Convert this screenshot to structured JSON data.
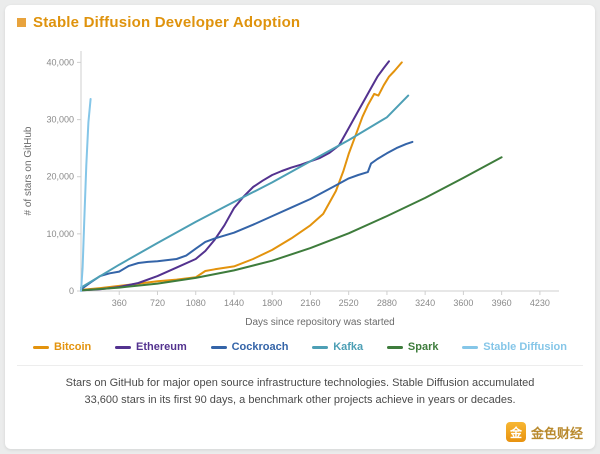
{
  "header": {
    "title": "Stable Diffusion Developer Adoption"
  },
  "colors": {
    "title_accent": "#DF930D",
    "axis_line": "#cfcfcf",
    "tick_text": "#8a8a8a",
    "axis_title_text": "#6b6b6b"
  },
  "chart_data": {
    "type": "line",
    "title": "Stable Diffusion Developer Adoption",
    "xlabel": "Days since repository was started",
    "ylabel": "# of stars on GitHub",
    "x_range": [
      0,
      4500
    ],
    "y_range": [
      0,
      42000
    ],
    "grid": false,
    "legend_position": "bottom",
    "x_tick_step": 360,
    "x_tick_labels": [
      "360",
      "720",
      "1080",
      "1440",
      "1800",
      "2160",
      "2520",
      "2880",
      "3240",
      "3600",
      "3960",
      "4230"
    ],
    "y_tick_values": [
      0,
      10000,
      20000,
      30000,
      40000
    ],
    "y_tick_labels": [
      "0",
      "10,000",
      "20,000",
      "30,000",
      "40,000"
    ],
    "series": [
      {
        "name": "Bitcoin",
        "color": "#E3930D",
        "points": [
          [
            0,
            200
          ],
          [
            180,
            500
          ],
          [
            360,
            900
          ],
          [
            540,
            1300
          ],
          [
            720,
            1700
          ],
          [
            900,
            2000
          ],
          [
            1080,
            2400
          ],
          [
            1170,
            3500
          ],
          [
            1260,
            3800
          ],
          [
            1440,
            4300
          ],
          [
            1620,
            5600
          ],
          [
            1800,
            7200
          ],
          [
            1980,
            9200
          ],
          [
            2160,
            11500
          ],
          [
            2280,
            13500
          ],
          [
            2400,
            17500
          ],
          [
            2470,
            21000
          ],
          [
            2520,
            24000
          ],
          [
            2580,
            27000
          ],
          [
            2650,
            30500
          ],
          [
            2700,
            32500
          ],
          [
            2760,
            34500
          ],
          [
            2800,
            34200
          ],
          [
            2850,
            36000
          ],
          [
            2900,
            37500
          ],
          [
            2950,
            38500
          ],
          [
            3020,
            40000
          ]
        ]
      },
      {
        "name": "Ethereum",
        "color": "#53328F",
        "points": [
          [
            0,
            100
          ],
          [
            180,
            300
          ],
          [
            360,
            700
          ],
          [
            540,
            1400
          ],
          [
            720,
            2600
          ],
          [
            900,
            4100
          ],
          [
            1080,
            5600
          ],
          [
            1170,
            7000
          ],
          [
            1260,
            9000
          ],
          [
            1350,
            11500
          ],
          [
            1440,
            14500
          ],
          [
            1530,
            16500
          ],
          [
            1620,
            18200
          ],
          [
            1710,
            19300
          ],
          [
            1800,
            20300
          ],
          [
            1890,
            21000
          ],
          [
            1980,
            21600
          ],
          [
            2070,
            22100
          ],
          [
            2160,
            22700
          ],
          [
            2250,
            23300
          ],
          [
            2340,
            24200
          ],
          [
            2430,
            25500
          ],
          [
            2490,
            27500
          ],
          [
            2550,
            29500
          ],
          [
            2610,
            31500
          ],
          [
            2670,
            33500
          ],
          [
            2730,
            35500
          ],
          [
            2790,
            37500
          ],
          [
            2850,
            39000
          ],
          [
            2900,
            40200
          ]
        ]
      },
      {
        "name": "Cockroach",
        "color": "#3464A8",
        "points": [
          [
            0,
            300
          ],
          [
            90,
            1500
          ],
          [
            180,
            2600
          ],
          [
            270,
            3100
          ],
          [
            360,
            3400
          ],
          [
            450,
            4400
          ],
          [
            540,
            4900
          ],
          [
            630,
            5100
          ],
          [
            720,
            5200
          ],
          [
            810,
            5400
          ],
          [
            900,
            5600
          ],
          [
            990,
            6200
          ],
          [
            1080,
            7400
          ],
          [
            1170,
            8600
          ],
          [
            1260,
            9200
          ],
          [
            1350,
            9700
          ],
          [
            1440,
            10200
          ],
          [
            1620,
            11600
          ],
          [
            1800,
            13100
          ],
          [
            1980,
            14600
          ],
          [
            2160,
            16100
          ],
          [
            2340,
            17900
          ],
          [
            2430,
            18800
          ],
          [
            2520,
            19700
          ],
          [
            2610,
            20300
          ],
          [
            2700,
            20800
          ],
          [
            2730,
            22300
          ],
          [
            2790,
            23100
          ],
          [
            2880,
            24100
          ],
          [
            2970,
            25000
          ],
          [
            3060,
            25700
          ],
          [
            3120,
            26100
          ]
        ]
      },
      {
        "name": "Kafka",
        "color": "#4D9FB5",
        "points": [
          [
            0,
            600
          ],
          [
            360,
            4600
          ],
          [
            720,
            8400
          ],
          [
            1080,
            12100
          ],
          [
            1440,
            15600
          ],
          [
            1800,
            19000
          ],
          [
            2160,
            22700
          ],
          [
            2520,
            26400
          ],
          [
            2880,
            30400
          ],
          [
            3080,
            34200
          ]
        ]
      },
      {
        "name": "Spark",
        "color": "#3E7C3C",
        "points": [
          [
            0,
            100
          ],
          [
            360,
            600
          ],
          [
            720,
            1300
          ],
          [
            1080,
            2300
          ],
          [
            1440,
            3600
          ],
          [
            1800,
            5300
          ],
          [
            2160,
            7500
          ],
          [
            2520,
            10100
          ],
          [
            2880,
            13100
          ],
          [
            3240,
            16300
          ],
          [
            3600,
            19800
          ],
          [
            3960,
            23400
          ]
        ]
      },
      {
        "name": "Stable Diffusion",
        "color": "#85C6E8",
        "points": [
          [
            0,
            0
          ],
          [
            15,
            4000
          ],
          [
            30,
            12000
          ],
          [
            50,
            22000
          ],
          [
            70,
            29500
          ],
          [
            90,
            33600
          ]
        ]
      }
    ]
  },
  "caption": {
    "text": "Stars on GitHub for major open source infrastructure technologies. Stable Diffusion accumulated 33,600 stars in its first 90 days, a benchmark other projects achieve in years or decades."
  },
  "watermark": {
    "icon_char": "金",
    "text": "金色财经"
  }
}
